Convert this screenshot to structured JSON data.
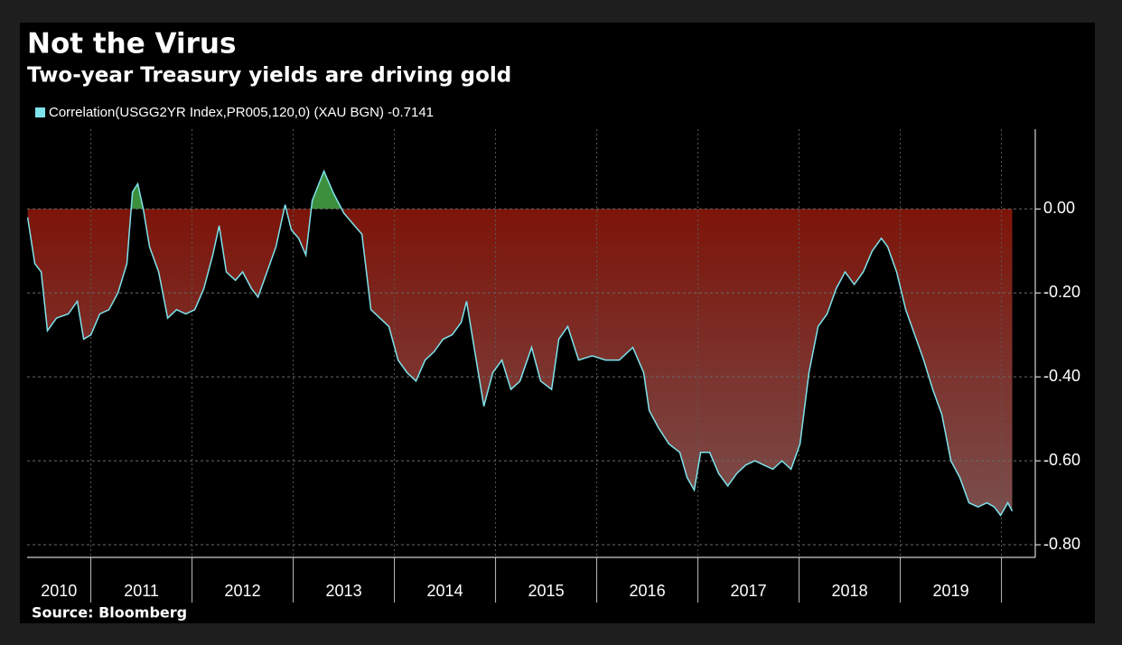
{
  "chart_data": {
    "type": "area",
    "title": "Not the Virus",
    "subtitle": "Two-year Treasury yields are driving gold",
    "source": "Source: Bloomberg",
    "x": [
      2010.375,
      2010.446,
      2010.509,
      2010.571,
      2010.661,
      2010.777,
      2010.866,
      2010.929,
      2011.0,
      2011.089,
      2011.179,
      2011.268,
      2011.357,
      2011.411,
      2011.464,
      2011.518,
      2011.58,
      2011.67,
      2011.759,
      2011.848,
      2011.938,
      2012.027,
      2012.116,
      2012.205,
      2012.268,
      2012.339,
      2012.429,
      2012.5,
      2012.589,
      2012.652,
      2012.741,
      2012.83,
      2012.92,
      2012.982,
      2013.054,
      2013.125,
      2013.188,
      2013.304,
      2013.393,
      2013.5,
      2013.607,
      2013.679,
      2013.768,
      2013.857,
      2013.946,
      2014.036,
      2014.125,
      2014.214,
      2014.304,
      2014.393,
      2014.482,
      2014.571,
      2014.661,
      2014.714,
      2014.795,
      2014.884,
      2014.973,
      2015.063,
      2015.152,
      2015.241,
      2015.357,
      2015.446,
      2015.554,
      2015.625,
      2015.714,
      2015.821,
      2015.955,
      2016.089,
      2016.223,
      2016.357,
      2016.464,
      2016.518,
      2016.607,
      2016.714,
      2016.821,
      2016.893,
      2016.964,
      2017.027,
      2017.116,
      2017.205,
      2017.295,
      2017.384,
      2017.473,
      2017.563,
      2017.652,
      2017.741,
      2017.83,
      2017.92,
      2018.009,
      2018.098,
      2018.188,
      2018.277,
      2018.366,
      2018.455,
      2018.545,
      2018.634,
      2018.723,
      2018.813,
      2018.875,
      2018.964,
      2019.054,
      2019.143,
      2019.232,
      2019.321,
      2019.411,
      2019.5,
      2019.589,
      2019.679,
      2019.768,
      2019.857,
      2019.929,
      2019.991,
      2020.063,
      2020.107
    ],
    "series": [
      {
        "name": "Correlation(USGG2YR Index,PR005,120,0) (XAU BGN) -0.7141",
        "color": "#7fe3ec",
        "values": [
          -0.02,
          -0.13,
          -0.15,
          -0.29,
          -0.26,
          -0.25,
          -0.22,
          -0.31,
          -0.3,
          -0.25,
          -0.24,
          -0.2,
          -0.13,
          0.04,
          0.06,
          0.0,
          -0.09,
          -0.15,
          -0.26,
          -0.24,
          -0.25,
          -0.24,
          -0.19,
          -0.11,
          -0.04,
          -0.15,
          -0.17,
          -0.15,
          -0.19,
          -0.21,
          -0.15,
          -0.09,
          0.01,
          -0.05,
          -0.07,
          -0.11,
          0.02,
          0.09,
          0.04,
          -0.01,
          -0.04,
          -0.06,
          -0.24,
          -0.26,
          -0.28,
          -0.36,
          -0.39,
          -0.41,
          -0.36,
          -0.34,
          -0.31,
          -0.3,
          -0.27,
          -0.22,
          -0.34,
          -0.47,
          -0.39,
          -0.36,
          -0.43,
          -0.41,
          -0.33,
          -0.41,
          -0.43,
          -0.31,
          -0.28,
          -0.36,
          -0.35,
          -0.36,
          -0.36,
          -0.33,
          -0.39,
          -0.48,
          -0.52,
          -0.56,
          -0.58,
          -0.64,
          -0.67,
          -0.58,
          -0.58,
          -0.63,
          -0.66,
          -0.63,
          -0.61,
          -0.6,
          -0.61,
          -0.62,
          -0.6,
          -0.62,
          -0.56,
          -0.39,
          -0.28,
          -0.25,
          -0.19,
          -0.15,
          -0.18,
          -0.15,
          -0.1,
          -0.07,
          -0.09,
          -0.15,
          -0.24,
          -0.3,
          -0.36,
          -0.43,
          -0.49,
          -0.6,
          -0.64,
          -0.7,
          -0.71,
          -0.7,
          -0.71,
          -0.73,
          -0.7,
          -0.72
        ]
      }
    ],
    "fill_below": "#7d1409",
    "fill_below_end": "#7a5656",
    "fill_above": "#3c8f3c",
    "xlim": [
      2010.37,
      2020.37
    ],
    "xticks": [
      {
        "value": 2010.5,
        "label": "2010"
      },
      {
        "value": 2011.5,
        "label": "2011"
      },
      {
        "value": 2012.5,
        "label": "2012"
      },
      {
        "value": 2013.5,
        "label": "2013"
      },
      {
        "value": 2014.5,
        "label": "2014"
      },
      {
        "value": 2015.5,
        "label": "2015"
      },
      {
        "value": 2016.5,
        "label": "2016"
      },
      {
        "value": 2017.5,
        "label": "2017"
      },
      {
        "value": 2018.5,
        "label": "2018"
      },
      {
        "value": 2019.5,
        "label": "2019"
      }
    ],
    "ylim": [
      -0.83,
      0.19
    ],
    "yticks": [
      {
        "value": 0,
        "label": "0.00"
      },
      {
        "value": -0.2,
        "label": "-0.20"
      },
      {
        "value": -0.4,
        "label": "-0.40"
      },
      {
        "value": -0.6,
        "label": "-0.60"
      },
      {
        "value": -0.8,
        "label": "-0.80"
      }
    ],
    "grid": true
  }
}
